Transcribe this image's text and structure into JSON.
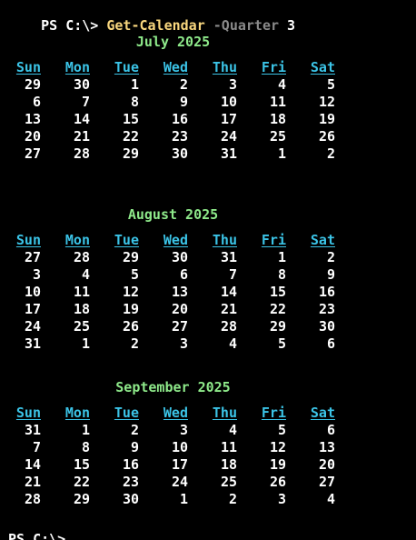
{
  "terminal": {
    "prompt": "PS C:\\> ",
    "command": "Get-Calendar",
    "param": " -Quarter",
    "arg": " 3",
    "trailing_prompt": "PS C:\\>"
  },
  "weekdays": [
    "Sun",
    "Mon",
    "Tue",
    "Wed",
    "Thu",
    "Fri",
    "Sat"
  ],
  "months": [
    {
      "title": "July 2025",
      "weeks": [
        [
          "29",
          "30",
          "1",
          "2",
          "3",
          "4",
          "5"
        ],
        [
          "6",
          "7",
          "8",
          "9",
          "10",
          "11",
          "12"
        ],
        [
          "13",
          "14",
          "15",
          "16",
          "17",
          "18",
          "19"
        ],
        [
          "20",
          "21",
          "22",
          "23",
          "24",
          "25",
          "26"
        ],
        [
          "27",
          "28",
          "29",
          "30",
          "31",
          "1",
          "2"
        ]
      ]
    },
    {
      "title": "August 2025",
      "weeks": [
        [
          "27",
          "28",
          "29",
          "30",
          "31",
          "1",
          "2"
        ],
        [
          "3",
          "4",
          "5",
          "6",
          "7",
          "8",
          "9"
        ],
        [
          "10",
          "11",
          "12",
          "13",
          "14",
          "15",
          "16"
        ],
        [
          "17",
          "18",
          "19",
          "20",
          "21",
          "22",
          "23"
        ],
        [
          "24",
          "25",
          "26",
          "27",
          "28",
          "29",
          "30"
        ],
        [
          "31",
          "1",
          "2",
          "3",
          "4",
          "5",
          "6"
        ]
      ]
    },
    {
      "title": "September 2025",
      "weeks": [
        [
          "31",
          "1",
          "2",
          "3",
          "4",
          "5",
          "6"
        ],
        [
          "7",
          "8",
          "9",
          "10",
          "11",
          "12",
          "13"
        ],
        [
          "14",
          "15",
          "16",
          "17",
          "18",
          "19",
          "20"
        ],
        [
          "21",
          "22",
          "23",
          "24",
          "25",
          "26",
          "27"
        ],
        [
          "28",
          "29",
          "30",
          "1",
          "2",
          "3",
          "4"
        ]
      ]
    }
  ],
  "colors": {
    "background": "#000000",
    "command": "#f9d77e",
    "parameter": "#8a8a8a",
    "month_title": "#8ee98a",
    "weekday_header": "#3bc3e6",
    "text": "#ffffff"
  }
}
